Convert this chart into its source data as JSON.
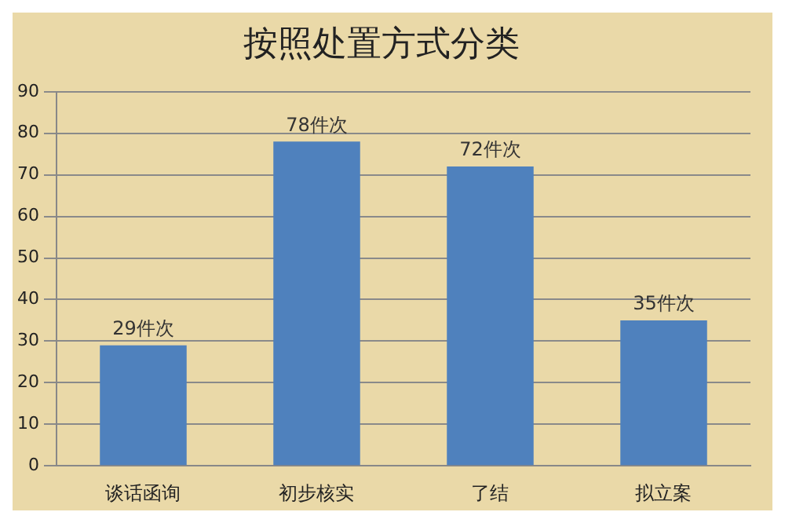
{
  "chart_data": {
    "type": "bar",
    "title": "按照处置方式分类",
    "categories": [
      "谈话函询",
      "初步核实",
      "了结",
      "拟立案"
    ],
    "values": [
      29,
      78,
      72,
      35
    ],
    "value_labels": [
      "29件次",
      "78件次",
      "72件次",
      "35件次"
    ],
    "color": "#4f81bd",
    "ylim": [
      0,
      90
    ],
    "yticks": [
      0,
      10,
      20,
      30,
      40,
      50,
      60,
      70,
      80,
      90
    ],
    "grid": "y",
    "legend": false
  }
}
